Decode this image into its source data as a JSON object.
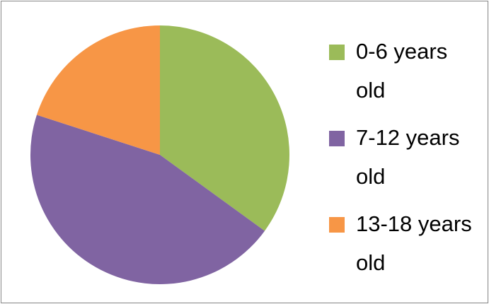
{
  "chart_data": {
    "type": "pie",
    "categories": [
      "0-6 years old",
      "7-12 years old",
      "13-18 years old"
    ],
    "values": [
      35,
      45,
      20
    ],
    "colors": [
      "#9bbb59",
      "#8064a2",
      "#f79646"
    ]
  }
}
